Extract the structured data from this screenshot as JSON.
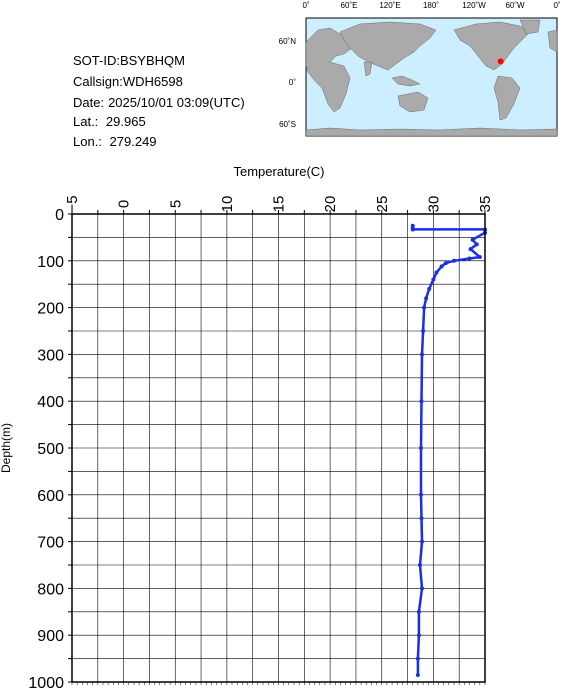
{
  "header": {
    "sot_id": "SOT-ID:BSYBHQM",
    "callsign": "Callsign:WDH6598",
    "date_label": "Date:",
    "date_value": "2025/10/01 03:09(UTC)",
    "lat_label": "Lat.:",
    "lat_value": "29.965",
    "lon_label": "Lon.:",
    "lon_value": "279.249"
  },
  "map": {
    "top_labels": [
      "0˚",
      "60˚E",
      "120˚E",
      "180˚",
      "120˚W",
      "60˚W",
      "0˚"
    ],
    "left_labels": [
      "60˚N",
      "0˚",
      "60˚S"
    ],
    "ocean_color": "#cceeff",
    "land_color": "#aaaaaa",
    "marker_color": "#ff0000",
    "marker": {
      "lon": 279.249,
      "lat": 29.965
    }
  },
  "chart_data": {
    "type": "line",
    "xlabel": "Temperature(C)",
    "ylabel": "Depth(m)",
    "xlim": [
      -5,
      35
    ],
    "ylim": [
      1000,
      0
    ],
    "x_ticks": [
      "-5",
      "0",
      "5",
      "10",
      "15",
      "20",
      "25",
      "30",
      "35"
    ],
    "y_ticks": [
      "0",
      "100",
      "200",
      "300",
      "400",
      "500",
      "600",
      "700",
      "800",
      "900",
      "1000"
    ],
    "grid": true,
    "line_color": "#1a2ee6",
    "series": [
      {
        "points": [
          [
            28.0,
            25
          ],
          [
            28.0,
            30
          ],
          [
            28.0,
            33
          ],
          [
            35.0,
            33
          ],
          [
            35.0,
            40
          ],
          [
            33.8,
            55
          ],
          [
            34.2,
            65
          ],
          [
            33.6,
            75
          ],
          [
            34.5,
            92
          ],
          [
            33.5,
            95
          ],
          [
            32.0,
            100
          ],
          [
            31.2,
            105
          ],
          [
            30.8,
            112
          ],
          [
            30.3,
            125
          ],
          [
            30.0,
            140
          ],
          [
            29.6,
            160
          ],
          [
            29.3,
            180
          ],
          [
            29.1,
            200
          ],
          [
            29.0,
            250
          ],
          [
            28.9,
            300
          ],
          [
            28.85,
            400
          ],
          [
            28.8,
            500
          ],
          [
            28.8,
            600
          ],
          [
            28.85,
            650
          ],
          [
            28.9,
            700
          ],
          [
            28.7,
            750
          ],
          [
            28.9,
            800
          ],
          [
            28.6,
            850
          ],
          [
            28.6,
            900
          ],
          [
            28.5,
            950
          ],
          [
            28.5,
            985
          ]
        ]
      }
    ]
  }
}
